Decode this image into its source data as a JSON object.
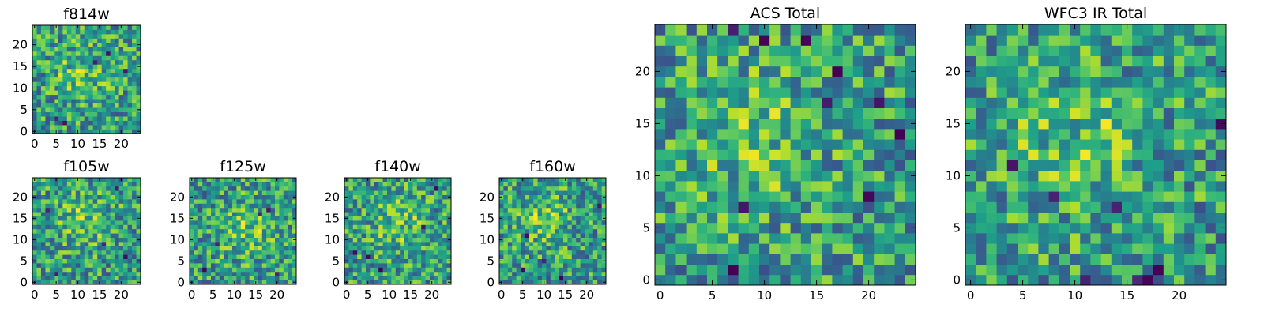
{
  "chart_data": [
    {
      "type": "heatmap",
      "title": "f814w",
      "colormap": "viridis",
      "grid_size": 25,
      "x_ticks": [
        0,
        5,
        10,
        15,
        20
      ],
      "y_ticks": [
        0,
        5,
        10,
        15,
        20
      ],
      "xlim": [
        0,
        25
      ],
      "ylim": [
        0,
        25
      ],
      "seed": 11,
      "bright_center": [
        11,
        14
      ],
      "dark_cells": [
        [
          5,
          3
        ],
        [
          14,
          16
        ],
        [
          17,
          18
        ],
        [
          21,
          14
        ],
        [
          7,
          2
        ]
      ]
    },
    {
      "type": "heatmap",
      "title": "f105w",
      "colormap": "viridis",
      "grid_size": 25,
      "x_ticks": [
        0,
        5,
        10,
        15,
        20
      ],
      "y_ticks": [
        0,
        5,
        10,
        15,
        20
      ],
      "xlim": [
        0,
        25
      ],
      "ylim": [
        0,
        25
      ],
      "seed": 23,
      "bright_center": [
        11,
        15
      ],
      "dark_cells": [
        [
          5,
          2
        ],
        [
          19,
          22
        ],
        [
          21,
          6
        ],
        [
          16,
          9
        ],
        [
          3,
          17
        ]
      ]
    },
    {
      "type": "heatmap",
      "title": "f125w",
      "colormap": "viridis",
      "grid_size": 25,
      "x_ticks": [
        0,
        5,
        10,
        15,
        20
      ],
      "y_ticks": [
        0,
        5,
        10,
        15,
        20
      ],
      "xlim": [
        0,
        25
      ],
      "ylim": [
        0,
        25
      ],
      "seed": 37,
      "bright_center": [
        13,
        12
      ],
      "dark_cells": [
        [
          6,
          9
        ],
        [
          16,
          16
        ],
        [
          18,
          17
        ],
        [
          3,
          3
        ],
        [
          20,
          2
        ]
      ]
    },
    {
      "type": "heatmap",
      "title": "f140w",
      "colormap": "viridis",
      "grid_size": 25,
      "x_ticks": [
        0,
        5,
        10,
        15,
        20
      ],
      "y_ticks": [
        0,
        5,
        10,
        15,
        20
      ],
      "xlim": [
        0,
        25
      ],
      "ylim": [
        0,
        25
      ],
      "seed": 41,
      "bright_center": [
        12,
        14
      ],
      "dark_cells": [
        [
          2,
          7
        ],
        [
          5,
          6
        ],
        [
          21,
          22
        ],
        [
          8,
          3
        ],
        [
          18,
          13
        ]
      ]
    },
    {
      "type": "heatmap",
      "title": "f160w",
      "colormap": "viridis",
      "grid_size": 25,
      "x_ticks": [
        0,
        5,
        10,
        15,
        20
      ],
      "y_ticks": [
        0,
        5,
        10,
        15,
        20
      ],
      "xlim": [
        0,
        25
      ],
      "ylim": [
        0,
        25
      ],
      "seed": 53,
      "bright_center": [
        10,
        15
      ],
      "dark_cells": [
        [
          5,
          3
        ],
        [
          10,
          5
        ],
        [
          14,
          1
        ],
        [
          23,
          18
        ],
        [
          6,
          11
        ]
      ]
    },
    {
      "type": "heatmap",
      "title": "ACS Total",
      "colormap": "viridis",
      "grid_size": 25,
      "x_ticks": [
        0,
        5,
        10,
        15,
        20
      ],
      "y_ticks": [
        0,
        5,
        10,
        15,
        20
      ],
      "xlim": [
        0,
        25
      ],
      "ylim": [
        0,
        25
      ],
      "seed": 67,
      "bright_center": [
        9,
        14
      ],
      "dark_cells": [
        [
          7,
          24
        ],
        [
          10,
          23
        ],
        [
          14,
          23
        ],
        [
          17,
          20
        ],
        [
          16,
          17
        ],
        [
          21,
          17
        ],
        [
          23,
          14
        ],
        [
          20,
          8
        ],
        [
          8,
          7
        ],
        [
          7,
          1
        ]
      ]
    },
    {
      "type": "heatmap",
      "title": "WFC3 IR Total",
      "colormap": "viridis",
      "grid_size": 25,
      "x_ticks": [
        0,
        5,
        10,
        15,
        20
      ],
      "y_ticks": [
        0,
        5,
        10,
        15,
        20
      ],
      "xlim": [
        0,
        25
      ],
      "ylim": [
        0,
        25
      ],
      "seed": 79,
      "bright_center": [
        10,
        13
      ],
      "dark_cells": [
        [
          4,
          11
        ],
        [
          8,
          8
        ],
        [
          14,
          7
        ],
        [
          24,
          15
        ],
        [
          11,
          0
        ],
        [
          17,
          0
        ],
        [
          16,
          0
        ],
        [
          18,
          1
        ]
      ]
    }
  ]
}
